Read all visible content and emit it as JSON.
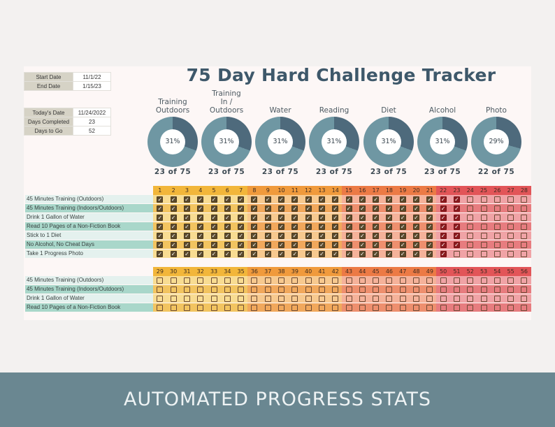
{
  "title": "75 Day Hard Challenge Tracker",
  "dates": [
    {
      "label": "Start Date",
      "value": "11/1/22"
    },
    {
      "label": "End Date",
      "value": "1/15/23"
    }
  ],
  "status": [
    {
      "label": "Today's Date",
      "value": "11/24/2022"
    },
    {
      "label": "Days Completed",
      "value": "23"
    },
    {
      "label": "Days to Go",
      "value": "52"
    }
  ],
  "metrics": [
    {
      "label": "Training\nOutdoors",
      "percent_text": "31%",
      "count_text": "23  of  75",
      "done": 23,
      "total": 75
    },
    {
      "label": "Training\nIn /\nOutdoors",
      "percent_text": "31%",
      "count_text": "23  of  75",
      "done": 23,
      "total": 75
    },
    {
      "label": "Water",
      "percent_text": "31%",
      "count_text": "23  of  75",
      "done": 23,
      "total": 75
    },
    {
      "label": "Reading",
      "percent_text": "31%",
      "count_text": "23  of  75",
      "done": 23,
      "total": 75
    },
    {
      "label": "Diet",
      "percent_text": "31%",
      "count_text": "23  of  75",
      "done": 23,
      "total": 75
    },
    {
      "label": "Alcohol",
      "percent_text": "31%",
      "count_text": "23  of  75",
      "done": 23,
      "total": 75
    },
    {
      "label": "Photo",
      "percent_text": "29%",
      "count_text": "22  of  75",
      "done": 22,
      "total": 75
    }
  ],
  "colors": {
    "donut_fill": "#4e6a7c",
    "donut_rest": "#6f97a3",
    "banner": "#6a8791",
    "title": "#3e586a"
  },
  "grid1": {
    "days": [
      "1",
      "2",
      "3",
      "4",
      "5",
      "6",
      "7",
      "8",
      "9",
      "10",
      "11",
      "12",
      "13",
      "14",
      "15",
      "16",
      "17",
      "18",
      "19",
      "20",
      "21",
      "22",
      "23",
      "24",
      "25",
      "26",
      "27",
      "28"
    ],
    "tasks": [
      {
        "label": "45 Minutes Training (Outdoors)",
        "done": 23
      },
      {
        "label": "45 Minutes Training (Indoors/Outdoors)",
        "done": 23
      },
      {
        "label": "Drink 1 Gallon of Water",
        "done": 23
      },
      {
        "label": "Read 10 Pages of a Non-Fiction Book",
        "done": 23
      },
      {
        "label": "Stick to 1 Diet",
        "done": 23
      },
      {
        "label": "No Alcohol, No Cheat Days",
        "done": 23
      },
      {
        "label": "Take 1 Progress Photo",
        "done": 22
      }
    ]
  },
  "grid2": {
    "days": [
      "29",
      "30",
      "31",
      "32",
      "33",
      "34",
      "35",
      "36",
      "37",
      "38",
      "39",
      "40",
      "41",
      "42",
      "43",
      "44",
      "45",
      "46",
      "47",
      "48",
      "49",
      "50",
      "51",
      "52",
      "53",
      "54",
      "55",
      "56"
    ],
    "tasks": [
      {
        "label": "45 Minutes Training (Outdoors)",
        "done": 0
      },
      {
        "label": "45 Minutes Training (Indoors/Outdoors)",
        "done": 0
      },
      {
        "label": "Drink 1 Gallon of Water",
        "done": 0
      },
      {
        "label": "Read 10 Pages of a Non-Fiction Book",
        "done": 0
      }
    ]
  },
  "banner": "AUTOMATED PROGRESS STATS"
}
